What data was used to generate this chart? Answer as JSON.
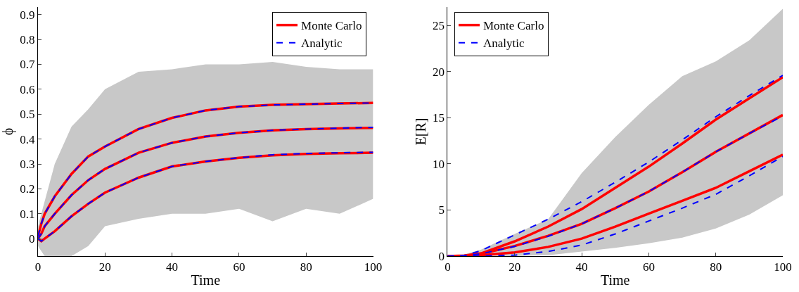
{
  "chart_data": [
    {
      "type": "line",
      "xlabel": "Time",
      "ylabel": "ϕ",
      "x": [
        0,
        1,
        2,
        5,
        10,
        15,
        20,
        30,
        40,
        50,
        60,
        70,
        80,
        90,
        100
      ],
      "xlim": [
        0,
        100
      ],
      "xticks": [
        0,
        20,
        40,
        60,
        80,
        100
      ],
      "ylim": [
        -0.07,
        0.93
      ],
      "yticks": [
        0,
        0.1,
        0.2,
        0.3,
        0.4,
        0.5,
        0.6,
        0.7,
        0.8,
        0.9
      ],
      "legend": "top right",
      "series": [
        {
          "name": "Monte Carlo",
          "color": "#ff0000",
          "line_style": "solid",
          "values": [
            0.01,
            0.06,
            0.1,
            0.17,
            0.26,
            0.33,
            0.37,
            0.44,
            0.485,
            0.515,
            0.53,
            0.537,
            0.54,
            0.543,
            0.545
          ]
        },
        {
          "color": "#ff0000",
          "line_style": "solid",
          "values": [
            0,
            0.02,
            0.05,
            0.1,
            0.175,
            0.235,
            0.28,
            0.345,
            0.385,
            0.41,
            0.425,
            0.435,
            0.44,
            0.443,
            0.445
          ],
          "lower": [
            -0.03,
            -0.05,
            -0.07,
            -0.07,
            -0.07,
            -0.03,
            0.05,
            0.08,
            0.1,
            0.1,
            0.12,
            0.07,
            0.12,
            0.1,
            0.16
          ],
          "upper": [
            0.05,
            0.1,
            0.15,
            0.3,
            0.45,
            0.52,
            0.6,
            0.67,
            0.68,
            0.7,
            0.7,
            0.71,
            0.69,
            0.68,
            0.68
          ]
        },
        {
          "color": "#ff0000",
          "line_style": "solid",
          "values": [
            0,
            -0.01,
            0,
            0.03,
            0.09,
            0.14,
            0.185,
            0.245,
            0.29,
            0.31,
            0.325,
            0.335,
            0.34,
            0.343,
            0.345
          ]
        },
        {
          "name": "Analytic",
          "color": "#0000ff",
          "line_style": "dashed",
          "values": [
            0.01,
            0.06,
            0.1,
            0.17,
            0.26,
            0.33,
            0.37,
            0.44,
            0.485,
            0.515,
            0.53,
            0.537,
            0.54,
            0.543,
            0.545
          ]
        },
        {
          "color": "#0000ff",
          "line_style": "dashed",
          "values": [
            0,
            0.02,
            0.05,
            0.1,
            0.175,
            0.235,
            0.28,
            0.345,
            0.385,
            0.41,
            0.425,
            0.435,
            0.44,
            0.444,
            0.447
          ]
        },
        {
          "color": "#0000ff",
          "line_style": "dashed",
          "values": [
            0,
            -0.01,
            0,
            0.03,
            0.09,
            0.14,
            0.185,
            0.245,
            0.29,
            0.31,
            0.325,
            0.337,
            0.342,
            0.345,
            0.347
          ]
        }
      ]
    },
    {
      "type": "line",
      "xlabel": "Time",
      "ylabel": "E[R]",
      "x": [
        0,
        5,
        10,
        20,
        30,
        40,
        50,
        60,
        70,
        80,
        90,
        100
      ],
      "xlim": [
        0,
        100
      ],
      "xticks": [
        0,
        20,
        40,
        60,
        80,
        100
      ],
      "ylim": [
        0,
        27
      ],
      "yticks": [
        0,
        5,
        10,
        15,
        20,
        25
      ],
      "legend": "top left",
      "series": [
        {
          "name": "Monte Carlo",
          "color": "#ff0000",
          "line_style": "solid",
          "values": [
            0,
            0.05,
            0.3,
            1.6,
            3.2,
            5.1,
            7.4,
            9.7,
            12.2,
            14.8,
            17.1,
            19.4
          ]
        },
        {
          "color": "#ff0000",
          "line_style": "solid",
          "values": [
            0,
            0.03,
            0.25,
            1.1,
            2.2,
            3.5,
            5.2,
            7.0,
            9.1,
            11.3,
            13.3,
            15.3
          ],
          "lower": [
            0,
            0,
            0,
            0,
            0.1,
            0.5,
            0.9,
            1.4,
            2.0,
            3.0,
            4.5,
            6.6
          ],
          "upper": [
            0,
            0.2,
            0.7,
            2.4,
            4.0,
            9.0,
            12.9,
            16.4,
            19.5,
            21.1,
            23.4,
            26.8
          ]
        },
        {
          "color": "#ff0000",
          "line_style": "solid",
          "values": [
            0,
            0,
            0.1,
            0.4,
            1.0,
            1.9,
            3.2,
            4.6,
            6.0,
            7.4,
            9.2,
            11.0
          ]
        },
        {
          "name": "Analytic",
          "color": "#0000ff",
          "line_style": "dashed",
          "values": [
            0,
            0.05,
            0.6,
            2.3,
            4.0,
            5.9,
            8.0,
            10.2,
            12.6,
            15.1,
            17.4,
            19.6
          ]
        },
        {
          "color": "#0000ff",
          "line_style": "dashed",
          "values": [
            0,
            0.03,
            0.25,
            1.05,
            2.15,
            3.5,
            5.2,
            7.0,
            9.1,
            11.3,
            13.3,
            15.2
          ]
        },
        {
          "color": "#0000ff",
          "line_style": "dashed",
          "values": [
            0,
            0,
            0,
            0.1,
            0.5,
            1.2,
            2.4,
            3.8,
            5.2,
            6.7,
            8.7,
            10.8
          ]
        }
      ]
    }
  ]
}
